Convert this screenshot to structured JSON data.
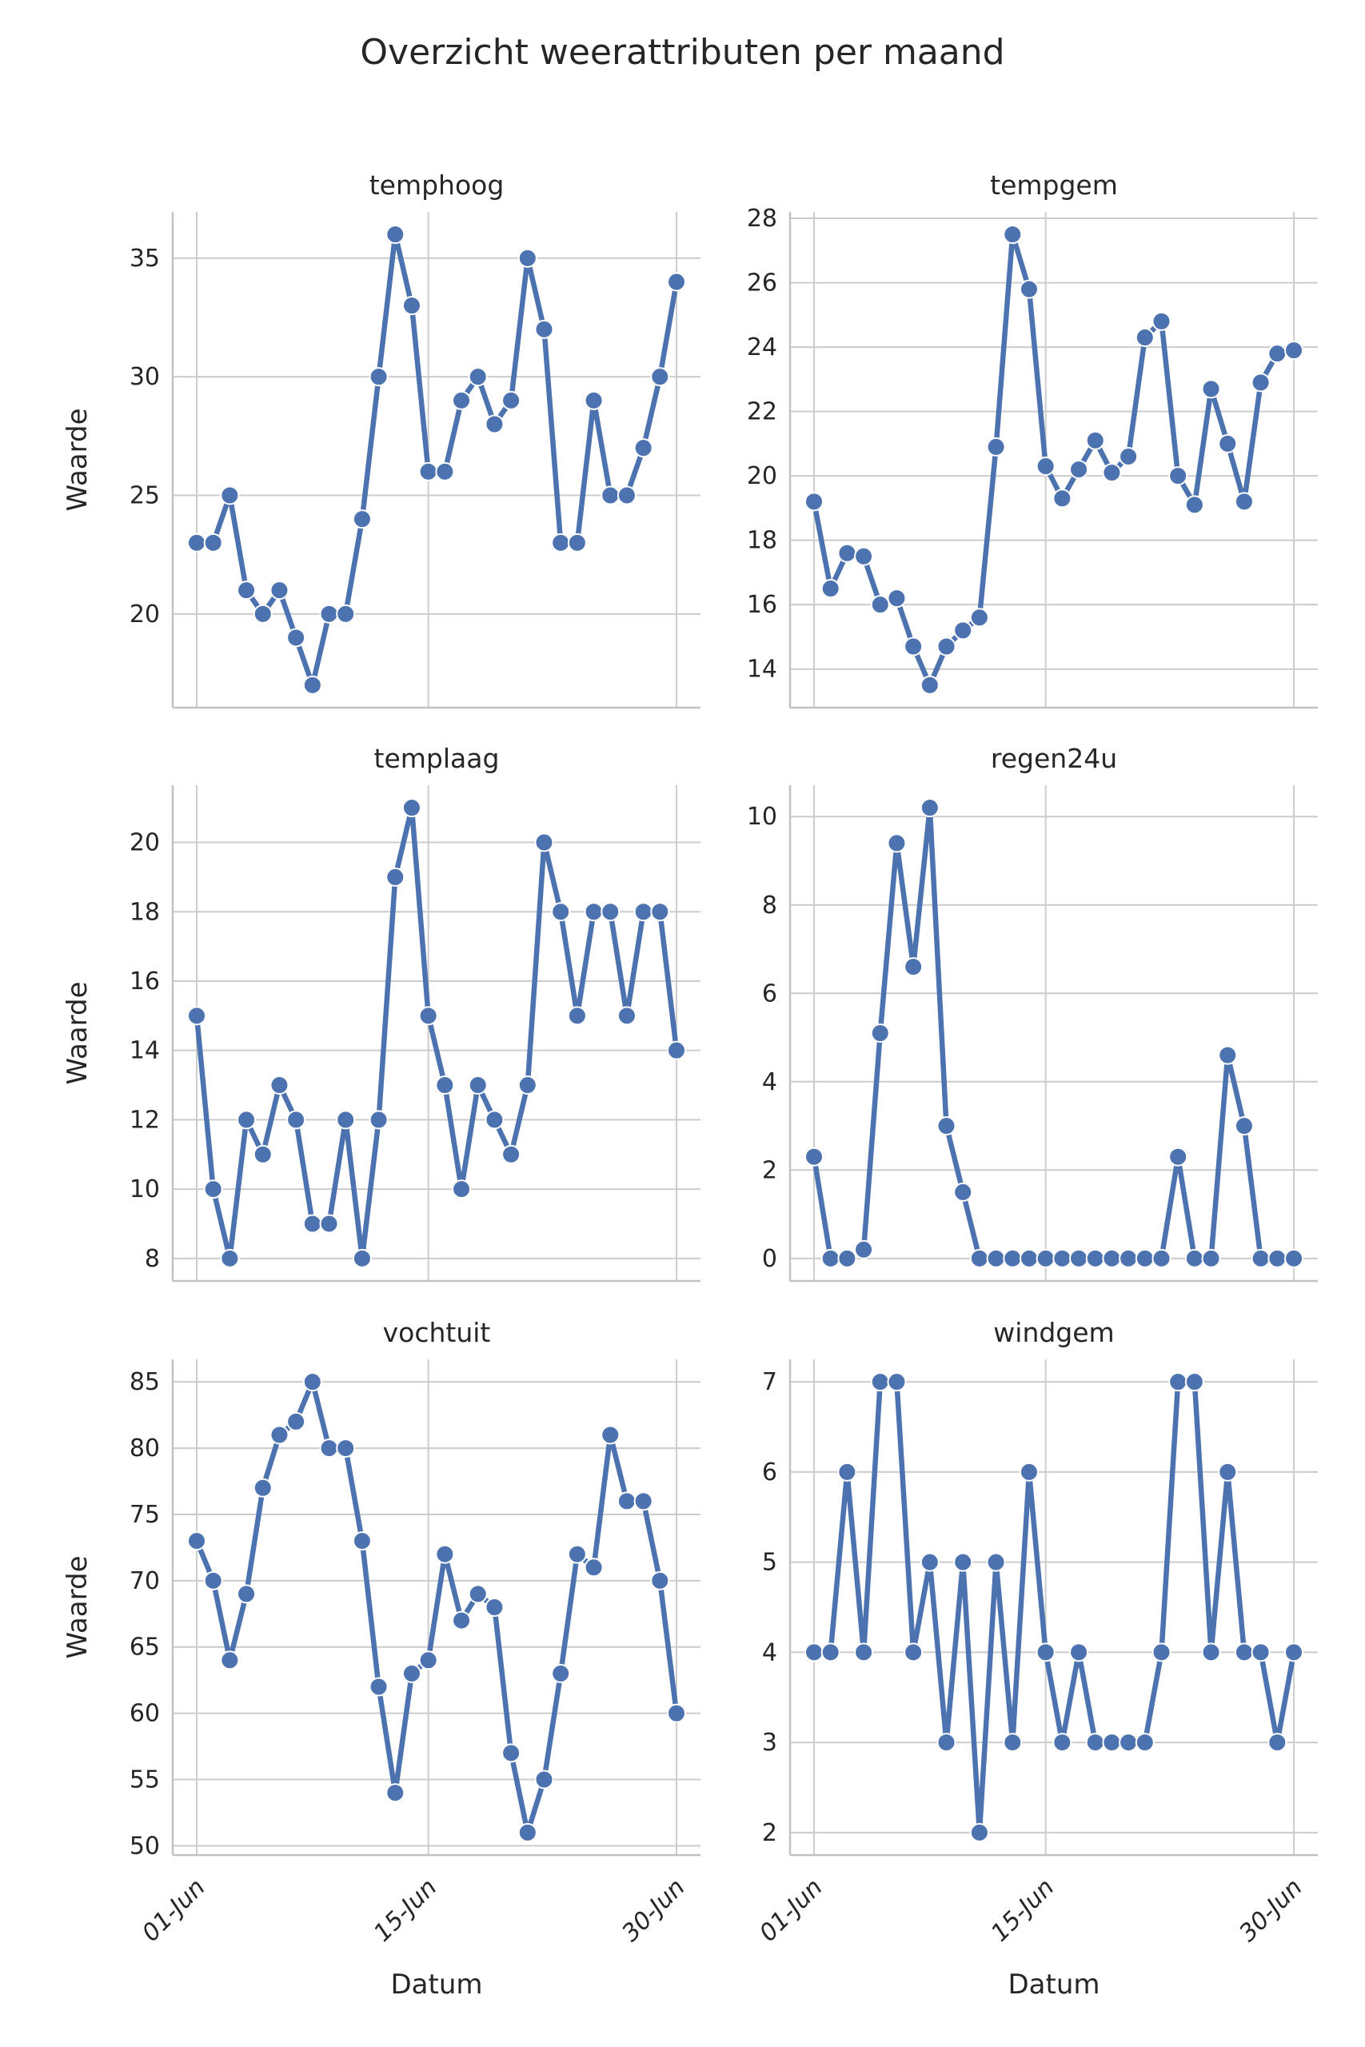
{
  "figure": {
    "title": "Overzicht weerattributen per maand"
  },
  "axes": {
    "ylabel": "Waarde",
    "xlabel": "Datum"
  },
  "colors": {
    "line": "#4C72B0",
    "grid": "#cccccc",
    "spine": "#c2c2c2",
    "text": "#262626",
    "background": "#ffffff"
  },
  "x_axis": {
    "tick_days": [
      1,
      15,
      30
    ],
    "tick_labels": [
      "01-Jun",
      "15-Jun",
      "30-Jun"
    ],
    "xlim": [
      -0.45,
      31.45
    ]
  },
  "chart_data": [
    {
      "type": "line",
      "title": "temphoog",
      "ylabel": "Waarde",
      "xlabel": "",
      "x": [
        1,
        2,
        3,
        4,
        5,
        6,
        7,
        8,
        9,
        10,
        11,
        12,
        13,
        14,
        15,
        16,
        17,
        18,
        19,
        20,
        21,
        22,
        23,
        24,
        25,
        26,
        27,
        28,
        29,
        30
      ],
      "values": [
        23,
        23,
        25,
        21,
        20,
        21,
        19,
        17,
        20,
        20,
        24,
        30,
        36,
        33,
        26,
        26,
        29,
        30,
        28,
        29,
        35,
        32,
        23,
        23,
        29,
        25,
        25,
        27,
        30,
        34
      ],
      "yticks": [
        20,
        25,
        30,
        35
      ],
      "ylim": [
        16.05,
        36.95
      ],
      "xlim": [
        -0.45,
        31.45
      ],
      "xtick_days": [
        1,
        15,
        30
      ],
      "xtick_labels": [
        "01-Jun",
        "15-Jun",
        "30-Jun"
      ],
      "grid": true,
      "legend": "none"
    },
    {
      "type": "line",
      "title": "tempgem",
      "ylabel": "",
      "xlabel": "",
      "x": [
        1,
        2,
        3,
        4,
        5,
        6,
        7,
        8,
        9,
        10,
        11,
        12,
        13,
        14,
        15,
        16,
        17,
        18,
        19,
        20,
        21,
        22,
        23,
        24,
        25,
        26,
        27,
        28,
        29,
        30
      ],
      "values": [
        19.2,
        16.5,
        17.6,
        17.5,
        16.0,
        16.2,
        14.7,
        13.5,
        14.7,
        15.2,
        15.6,
        20.9,
        27.5,
        25.8,
        20.3,
        19.3,
        20.2,
        21.1,
        20.1,
        20.6,
        24.3,
        24.8,
        20.0,
        19.1,
        22.7,
        21.0,
        19.2,
        22.9,
        23.8,
        23.9
      ],
      "yticks": [
        14,
        16,
        18,
        20,
        22,
        24,
        26,
        28
      ],
      "ylim": [
        12.8,
        28.2
      ],
      "xlim": [
        -0.45,
        31.45
      ],
      "xtick_days": [
        1,
        15,
        30
      ],
      "xtick_labels": [
        "01-Jun",
        "15-Jun",
        "30-Jun"
      ],
      "grid": true,
      "legend": "none"
    },
    {
      "type": "line",
      "title": "templaag",
      "ylabel": "Waarde",
      "xlabel": "",
      "x": [
        1,
        2,
        3,
        4,
        5,
        6,
        7,
        8,
        9,
        10,
        11,
        12,
        13,
        14,
        15,
        16,
        17,
        18,
        19,
        20,
        21,
        22,
        23,
        24,
        25,
        26,
        27,
        28,
        29,
        30
      ],
      "values": [
        15,
        10,
        8,
        12,
        11,
        13,
        12,
        9,
        9,
        12,
        8,
        12,
        19,
        21,
        15,
        13,
        10,
        13,
        12,
        11,
        13,
        20,
        18,
        15,
        18,
        18,
        15,
        18,
        18,
        14
      ],
      "yticks": [
        8,
        10,
        12,
        14,
        16,
        18,
        20
      ],
      "ylim": [
        7.35,
        21.65
      ],
      "xlim": [
        -0.45,
        31.45
      ],
      "xtick_days": [
        1,
        15,
        30
      ],
      "xtick_labels": [
        "01-Jun",
        "15-Jun",
        "30-Jun"
      ],
      "grid": true,
      "legend": "none"
    },
    {
      "type": "line",
      "title": "regen24u",
      "ylabel": "",
      "xlabel": "",
      "x": [
        1,
        2,
        3,
        4,
        5,
        6,
        7,
        8,
        9,
        10,
        11,
        12,
        13,
        14,
        15,
        16,
        17,
        18,
        19,
        20,
        21,
        22,
        23,
        24,
        25,
        26,
        27,
        28,
        29,
        30
      ],
      "values": [
        2.3,
        0,
        0,
        0.2,
        5.1,
        9.4,
        6.6,
        10.2,
        3.0,
        1.5,
        0,
        0,
        0,
        0,
        0,
        0,
        0,
        0,
        0,
        0,
        0,
        0,
        2.3,
        0,
        0,
        4.6,
        3.0,
        0,
        0,
        0
      ],
      "yticks": [
        0,
        2,
        4,
        6,
        8,
        10
      ],
      "ylim": [
        -0.51,
        10.71
      ],
      "xlim": [
        -0.45,
        31.45
      ],
      "xtick_days": [
        1,
        15,
        30
      ],
      "xtick_labels": [
        "01-Jun",
        "15-Jun",
        "30-Jun"
      ],
      "grid": true,
      "legend": "none"
    },
    {
      "type": "line",
      "title": "vochtuit",
      "ylabel": "Waarde",
      "xlabel": "Datum",
      "x": [
        1,
        2,
        3,
        4,
        5,
        6,
        7,
        8,
        9,
        10,
        11,
        12,
        13,
        14,
        15,
        16,
        17,
        18,
        19,
        20,
        21,
        22,
        23,
        24,
        25,
        26,
        27,
        28,
        29,
        30
      ],
      "values": [
        73,
        70,
        64,
        69,
        77,
        81,
        82,
        85,
        80,
        80,
        73,
        62,
        54,
        63,
        64,
        72,
        67,
        69,
        68,
        57,
        51,
        55,
        63,
        72,
        71,
        81,
        76,
        76,
        70,
        60
      ],
      "yticks": [
        50,
        55,
        60,
        65,
        70,
        75,
        80,
        85
      ],
      "ylim": [
        49.3,
        86.7
      ],
      "xlim": [
        -0.45,
        31.45
      ],
      "xtick_days": [
        1,
        15,
        30
      ],
      "xtick_labels": [
        "01-Jun",
        "15-Jun",
        "30-Jun"
      ],
      "grid": true,
      "legend": "none"
    },
    {
      "type": "line",
      "title": "windgem",
      "ylabel": "",
      "xlabel": "Datum",
      "x": [
        1,
        2,
        3,
        4,
        5,
        6,
        7,
        8,
        9,
        10,
        11,
        12,
        13,
        14,
        15,
        16,
        17,
        18,
        19,
        20,
        21,
        22,
        23,
        24,
        25,
        26,
        27,
        28,
        29,
        30
      ],
      "values": [
        4,
        4,
        6,
        4,
        7,
        7,
        4,
        5,
        3,
        5,
        2,
        5,
        3,
        6,
        4,
        3,
        4,
        3,
        3,
        3,
        3,
        4,
        7,
        7,
        4,
        6,
        4,
        4,
        3,
        4
      ],
      "yticks": [
        2,
        3,
        4,
        5,
        6,
        7
      ],
      "ylim": [
        1.75,
        7.25
      ],
      "xlim": [
        -0.45,
        31.45
      ],
      "xtick_days": [
        1,
        15,
        30
      ],
      "xtick_labels": [
        "01-Jun",
        "15-Jun",
        "30-Jun"
      ],
      "grid": true,
      "legend": "none"
    }
  ]
}
